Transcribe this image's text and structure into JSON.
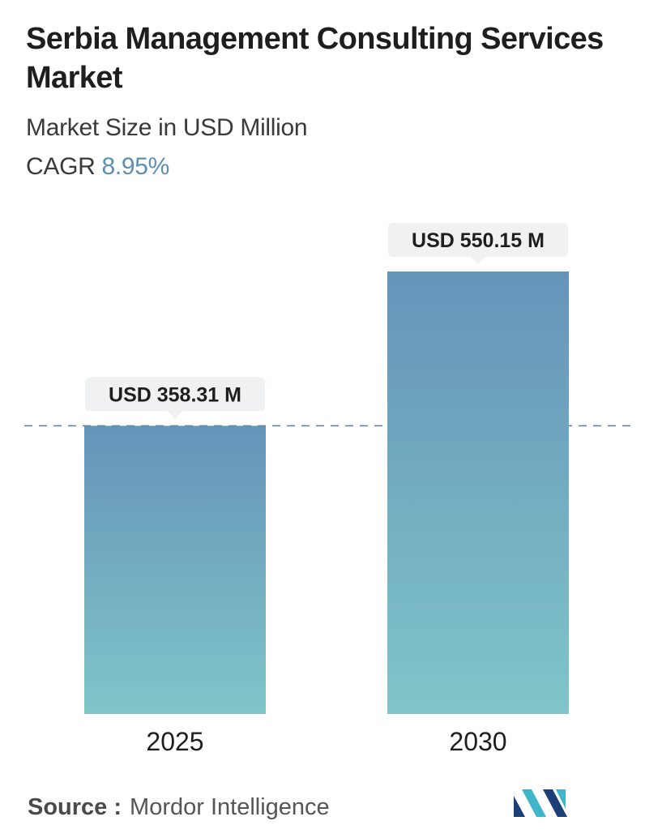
{
  "header": {
    "title": "Serbia Management Consulting Services Market",
    "subtitle": "Market Size in USD Million",
    "cagr_label": "CAGR",
    "cagr_value": "8.95%"
  },
  "chart_data": {
    "type": "bar",
    "categories": [
      "2025",
      "2030"
    ],
    "values": [
      358.31,
      550.15
    ],
    "data_labels": [
      "USD 358.31 M",
      "USD 550.15 M"
    ],
    "ylim": [
      0,
      550.15
    ],
    "grid": false,
    "reference_line": "dashed line at 2025 value",
    "colors": {
      "bar_top": "#6594b9",
      "bar_bottom": "#80c5c9",
      "label_bg": "#eff1f2",
      "dashed_line": "#5a7d9c"
    }
  },
  "footer": {
    "source_label": "Source :",
    "source_value": "Mordor Intelligence",
    "logo_icon": "mordor-intelligence-logo-icon",
    "logo_colors": [
      "#1c3f78",
      "#3fb7c8"
    ]
  }
}
